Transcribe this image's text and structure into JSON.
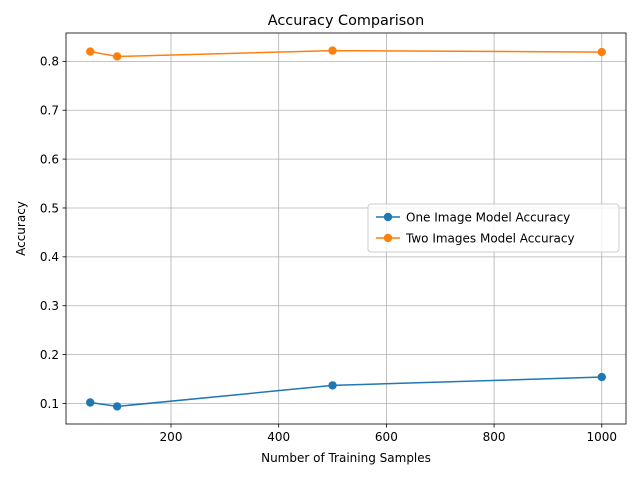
{
  "chart_data": {
    "type": "line",
    "title": "Accuracy Comparison",
    "xlabel": "Number of Training Samples",
    "ylabel": "Accuracy",
    "x": [
      50,
      100,
      500,
      1000
    ],
    "xlim": [
      5,
      1045
    ],
    "ylim": [
      0.058,
      0.858
    ],
    "xticks": [
      200,
      400,
      600,
      800,
      1000
    ],
    "yticks": [
      0.1,
      0.2,
      0.3,
      0.4,
      0.5,
      0.6,
      0.7,
      0.8
    ],
    "grid": true,
    "legend_position": "center-right",
    "series": [
      {
        "name": "One Image Model Accuracy",
        "color": "#1f77b4",
        "marker": "circle",
        "values": [
          0.102,
          0.094,
          0.137,
          0.154
        ]
      },
      {
        "name": "Two Images Model Accuracy",
        "color": "#ff7f0e",
        "marker": "circle",
        "values": [
          0.82,
          0.81,
          0.822,
          0.819
        ]
      }
    ]
  }
}
